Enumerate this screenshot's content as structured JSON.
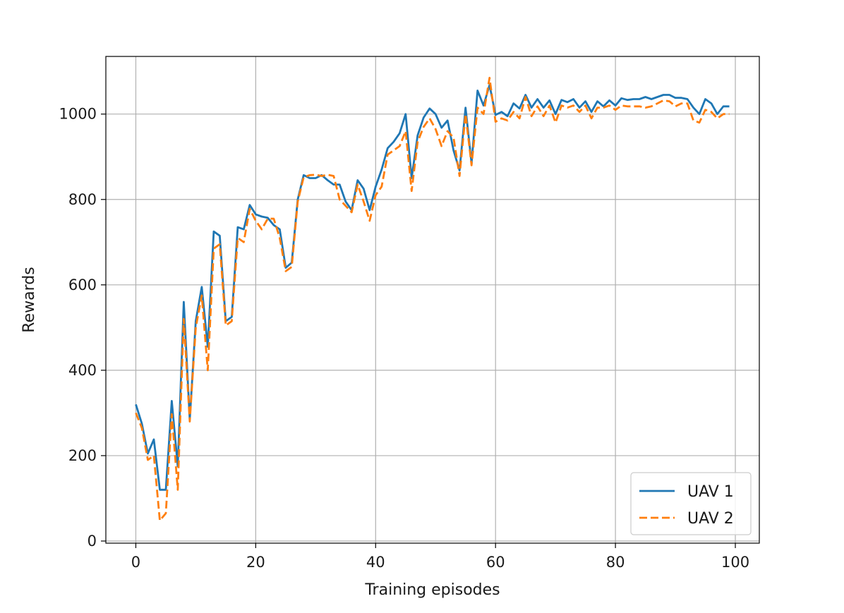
{
  "chart_data": {
    "type": "line",
    "title": "",
    "xlabel": "Training episodes",
    "ylabel": "Rewards",
    "xlim": [
      -5,
      104
    ],
    "ylim": [
      -5,
      1135
    ],
    "x_ticks": [
      0,
      20,
      40,
      60,
      80,
      100
    ],
    "y_ticks": [
      0,
      200,
      400,
      600,
      800,
      1000
    ],
    "grid": true,
    "legend_position": "bottom-right",
    "x": [
      0,
      1,
      2,
      3,
      4,
      5,
      6,
      7,
      8,
      9,
      10,
      11,
      12,
      13,
      14,
      15,
      16,
      17,
      18,
      19,
      20,
      21,
      22,
      23,
      24,
      25,
      26,
      27,
      28,
      29,
      30,
      31,
      32,
      33,
      34,
      35,
      36,
      37,
      38,
      39,
      40,
      41,
      42,
      43,
      44,
      45,
      46,
      47,
      48,
      49,
      50,
      51,
      52,
      53,
      54,
      55,
      56,
      57,
      58,
      59,
      60,
      61,
      62,
      63,
      64,
      65,
      66,
      67,
      68,
      69,
      70,
      71,
      72,
      73,
      74,
      75,
      76,
      77,
      78,
      79,
      80,
      81,
      82,
      83,
      84,
      85,
      86,
      87,
      88,
      89,
      90,
      91,
      92,
      93,
      94,
      95,
      96,
      97,
      98,
      99
    ],
    "series": [
      {
        "name": "UAV 1",
        "color": "#1f77b4",
        "style": "solid",
        "values": [
          320,
          275,
          205,
          238,
          120,
          120,
          328,
          175,
          560,
          285,
          515,
          595,
          455,
          725,
          715,
          515,
          525,
          735,
          730,
          787,
          765,
          760,
          757,
          740,
          730,
          640,
          652,
          800,
          857,
          850,
          850,
          857,
          845,
          835,
          835,
          795,
          775,
          845,
          825,
          775,
          830,
          870,
          920,
          935,
          955,
          1000,
          850,
          950,
          992,
          1013,
          1000,
          968,
          985,
          915,
          868,
          1015,
          885,
          1055,
          1020,
          1068,
          998,
          1005,
          995,
          1025,
          1013,
          1045,
          1015,
          1035,
          1015,
          1032,
          1000,
          1033,
          1028,
          1035,
          1015,
          1030,
          1005,
          1030,
          1018,
          1032,
          1020,
          1037,
          1033,
          1035,
          1035,
          1040,
          1035,
          1040,
          1045,
          1045,
          1038,
          1038,
          1035,
          1015,
          1000,
          1035,
          1025,
          1000,
          1018,
          1018
        ]
      },
      {
        "name": "UAV 2",
        "color": "#ff7f0e",
        "style": "dashed",
        "values": [
          300,
          265,
          190,
          200,
          48,
          65,
          297,
          120,
          520,
          280,
          500,
          575,
          400,
          685,
          695,
          505,
          515,
          710,
          700,
          778,
          750,
          730,
          755,
          755,
          710,
          632,
          642,
          795,
          852,
          857,
          858,
          855,
          858,
          855,
          800,
          785,
          770,
          835,
          795,
          750,
          810,
          830,
          905,
          915,
          925,
          960,
          820,
          935,
          970,
          990,
          965,
          925,
          960,
          945,
          855,
          1000,
          880,
          1015,
          1000,
          1085,
          982,
          990,
          985,
          1005,
          990,
          1040,
          995,
          1018,
          995,
          1020,
          980,
          1020,
          1015,
          1020,
          1005,
          1020,
          990,
          1015,
          1015,
          1020,
          1010,
          1020,
          1018,
          1018,
          1018,
          1015,
          1018,
          1025,
          1032,
          1030,
          1018,
          1025,
          1025,
          985,
          980,
          1010,
          1005,
          990,
          1000,
          1000
        ]
      }
    ]
  }
}
